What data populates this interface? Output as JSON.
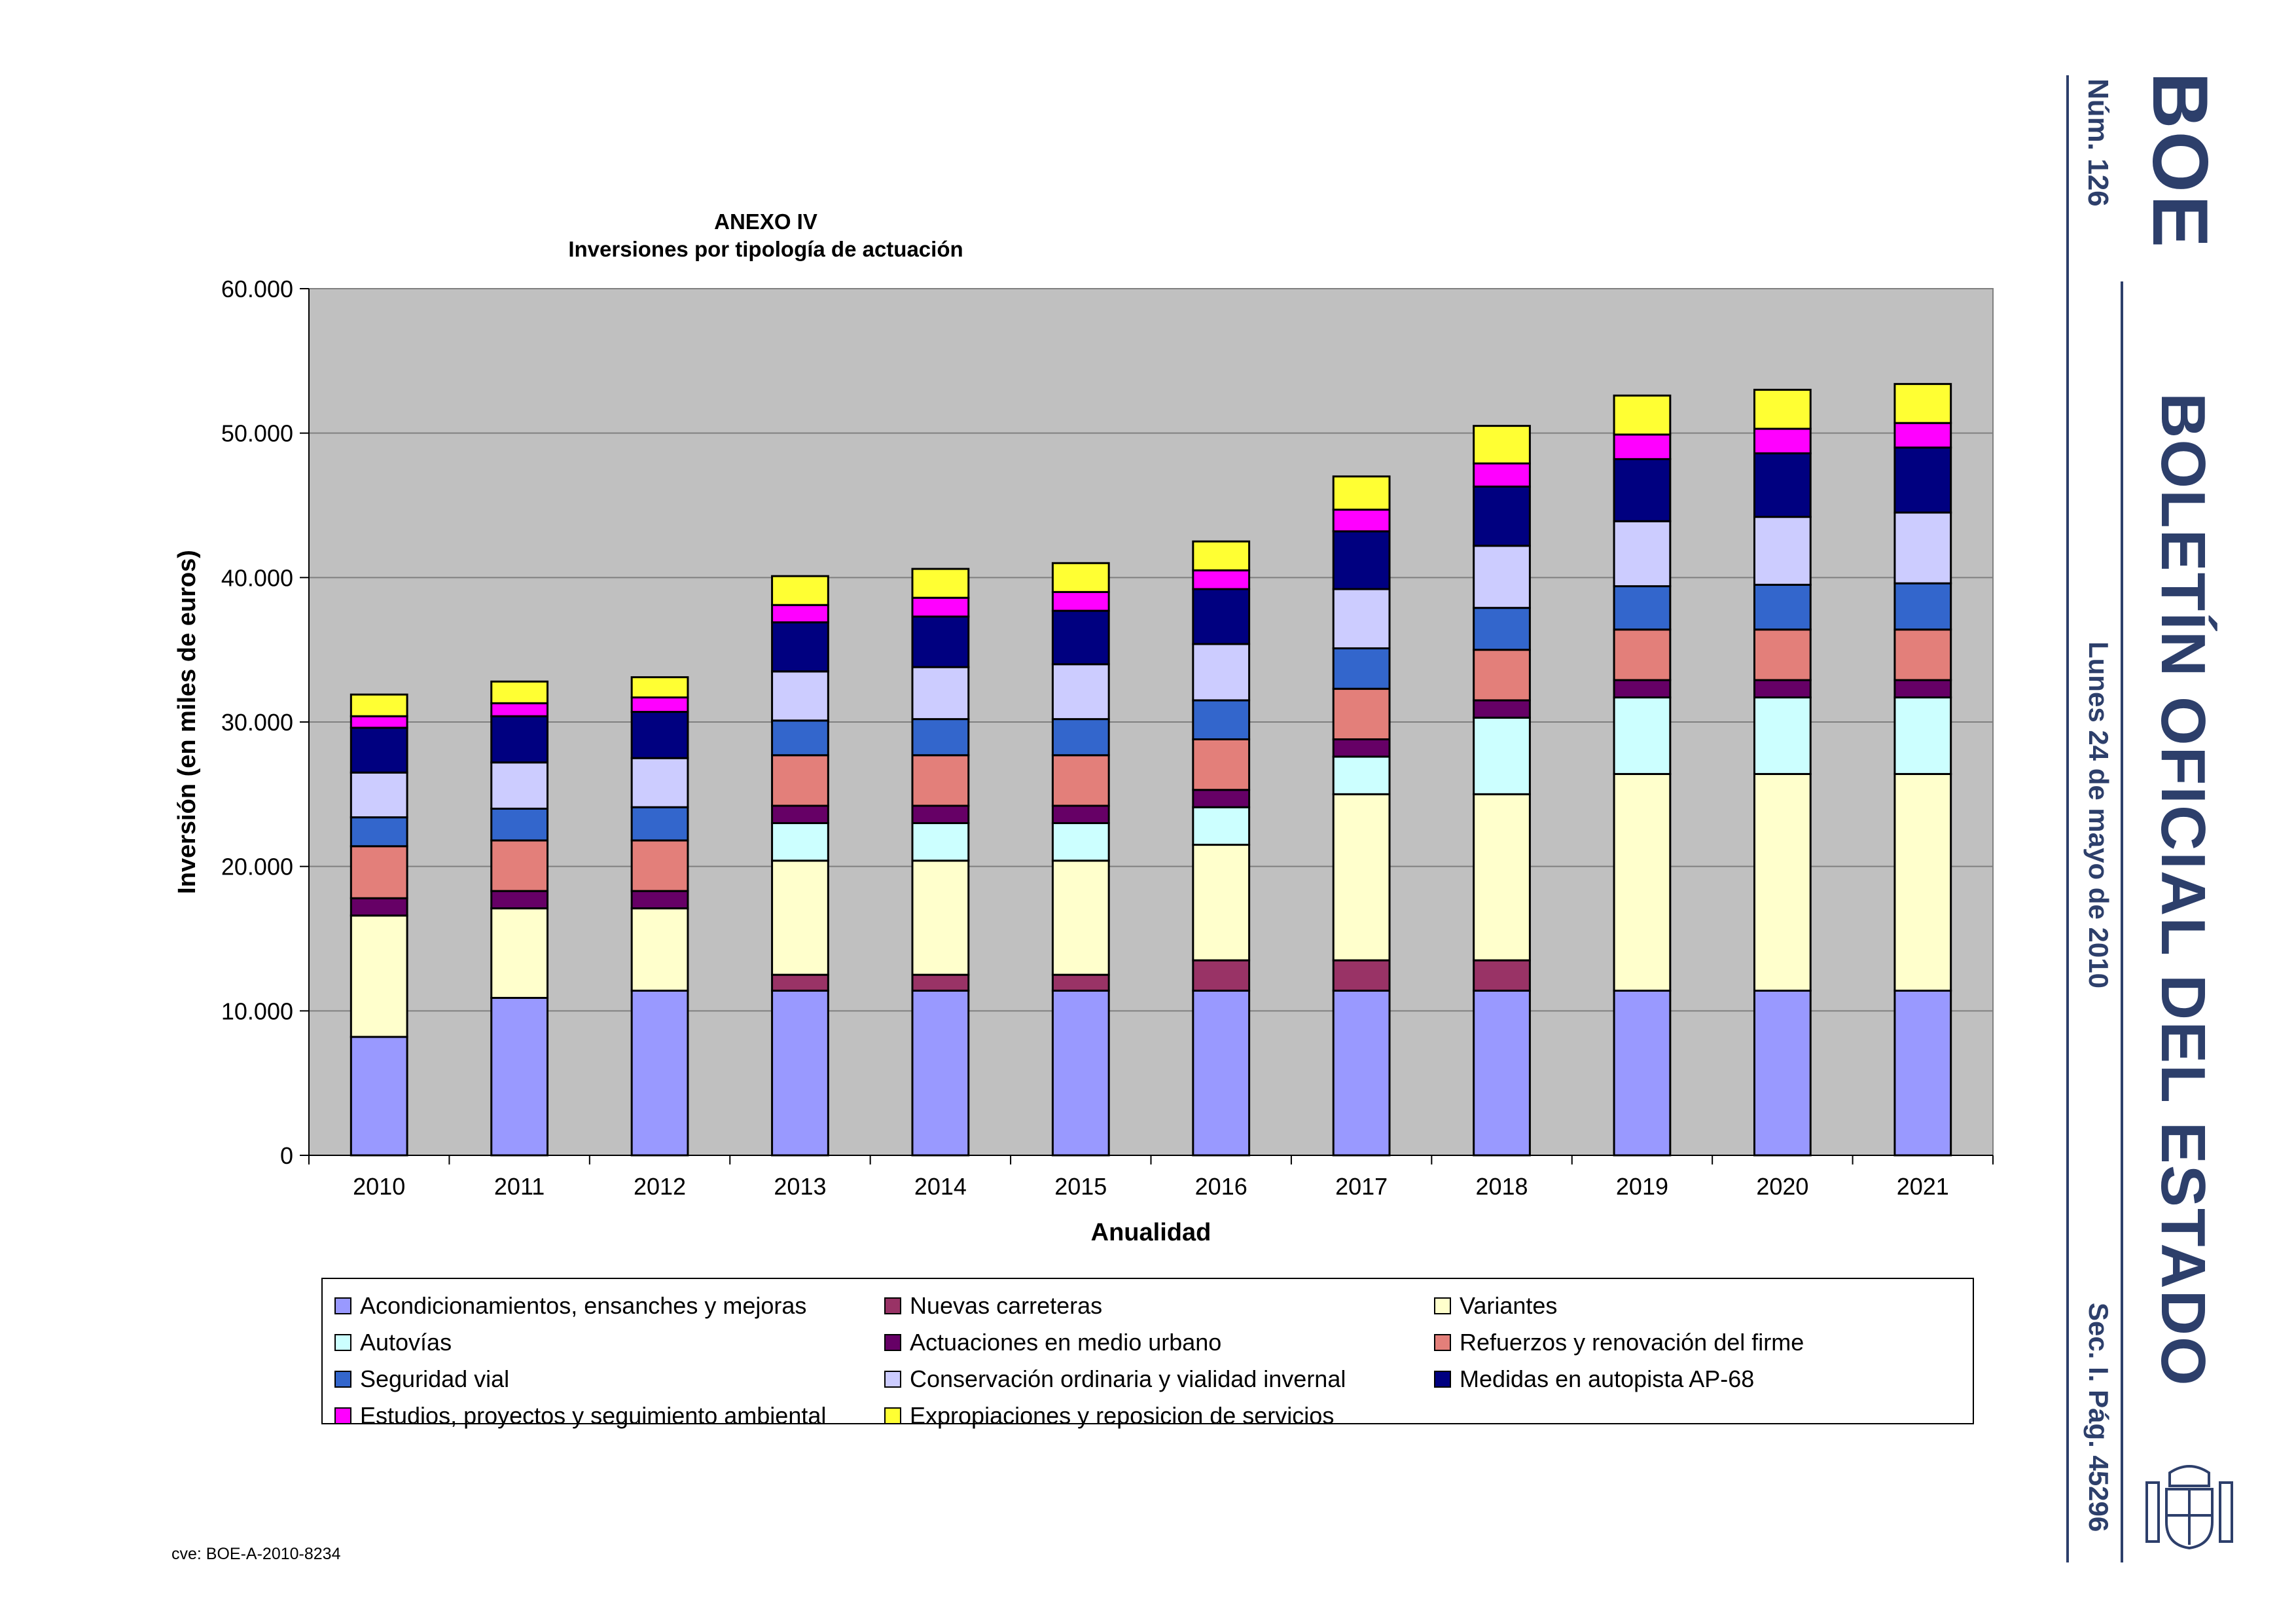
{
  "header": {
    "logo_text": "BOE",
    "issue_number": "Núm. 126",
    "publication": "BOLETÍN OFICIAL DEL ESTADO",
    "date": "Lunes 24 de mayo de 2010",
    "section_page": "Sec. I.   Pág. 45296"
  },
  "footer": {
    "cve": "cve: BOE-A-2010-8234"
  },
  "chart_data": {
    "type": "bar",
    "stacked": true,
    "title": "ANEXO IV",
    "subtitle": "Inversiones por tipología de actuación",
    "xlabel": "Anualidad",
    "ylabel": "Inversión (en miles de euros)",
    "ylim": [
      0,
      60000
    ],
    "yticks": [
      "0",
      "10.000",
      "20.000",
      "30.000",
      "40.000",
      "50.000",
      "60.000"
    ],
    "grid": true,
    "legend_position": "bottom",
    "categories": [
      "2010",
      "2011",
      "2012",
      "2013",
      "2014",
      "2015",
      "2016",
      "2017",
      "2018",
      "2019",
      "2020",
      "2021"
    ],
    "series": [
      {
        "name": "Acondicionamientos, ensanches y mejoras",
        "color": "#9999ff",
        "values": [
          8200,
          10900,
          11400,
          11400,
          11400,
          11400,
          11400,
          11400,
          11400,
          11400,
          11400,
          11400
        ]
      },
      {
        "name": "Nuevas carreteras",
        "color": "#993366",
        "values": [
          0,
          0,
          0,
          1100,
          1100,
          1100,
          2100,
          2100,
          2100,
          0,
          0,
          0
        ]
      },
      {
        "name": "Variantes",
        "color": "#ffffcc",
        "values": [
          8400,
          6200,
          5700,
          7900,
          7900,
          7900,
          8000,
          11500,
          11500,
          15000,
          15000,
          15000
        ]
      },
      {
        "name": "Autovías",
        "color": "#ccffff",
        "values": [
          0,
          0,
          0,
          2600,
          2600,
          2600,
          2600,
          2600,
          5300,
          5300,
          5300,
          5300
        ]
      },
      {
        "name": "Actuaciones en medio urbano",
        "color": "#660066",
        "values": [
          1200,
          1200,
          1200,
          1200,
          1200,
          1200,
          1200,
          1200,
          1200,
          1200,
          1200,
          1200
        ]
      },
      {
        "name": "Refuerzos y renovación del firme",
        "color": "#e37f7a",
        "values": [
          3600,
          3500,
          3500,
          3500,
          3500,
          3500,
          3500,
          3500,
          3500,
          3500,
          3500,
          3500
        ]
      },
      {
        "name": "Seguridad vial",
        "color": "#3366cc",
        "values": [
          2000,
          2200,
          2300,
          2400,
          2500,
          2500,
          2700,
          2800,
          2900,
          3000,
          3100,
          3200
        ]
      },
      {
        "name": "Conservación ordinaria y vialidad invernal",
        "color": "#ccccff",
        "values": [
          3100,
          3200,
          3400,
          3400,
          3600,
          3800,
          3900,
          4100,
          4300,
          4500,
          4700,
          4900
        ]
      },
      {
        "name": "Medidas en autopista AP-68",
        "color": "#000080",
        "values": [
          3100,
          3200,
          3200,
          3400,
          3500,
          3700,
          3800,
          4000,
          4100,
          4300,
          4400,
          4500
        ]
      },
      {
        "name": "Estudios, proyectos y seguimiento ambiental",
        "color": "#ff00ff",
        "values": [
          800,
          900,
          1000,
          1200,
          1300,
          1300,
          1300,
          1500,
          1600,
          1700,
          1700,
          1700
        ]
      },
      {
        "name": "Expropiaciones y reposicion de servicios",
        "color": "#ffff33",
        "values": [
          1500,
          1500,
          1400,
          2000,
          2000,
          2000,
          2000,
          2300,
          2600,
          2700,
          2700,
          2700
        ]
      }
    ]
  }
}
